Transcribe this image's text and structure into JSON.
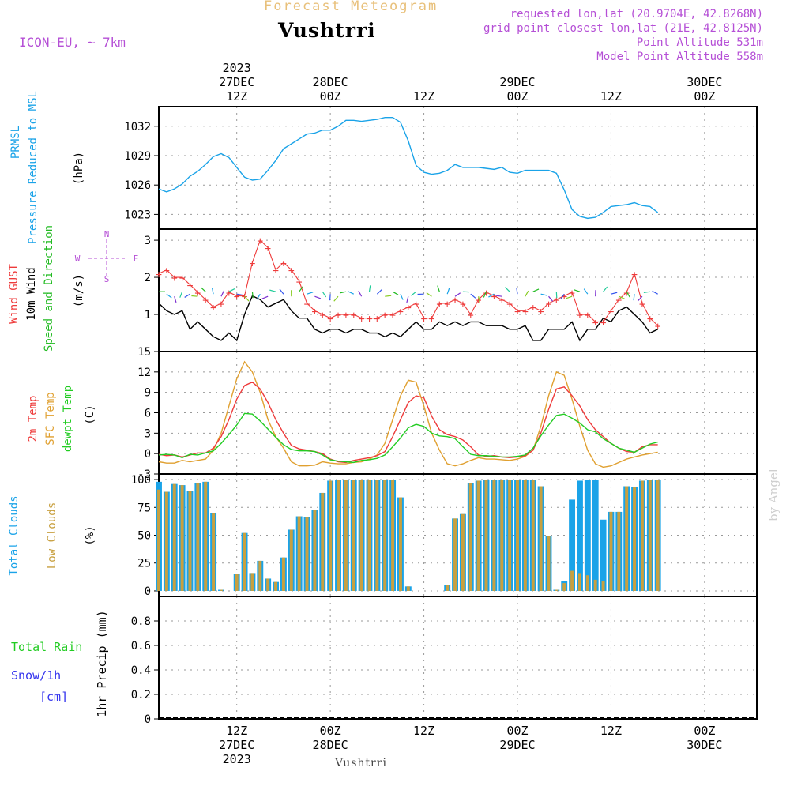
{
  "header": {
    "main_title": "Forecast Meteogram",
    "location": "Vushtrri",
    "model": "ICON-EU, ~ 7km",
    "requested": "requested lon,lat (20.9704E, 42.8268N)",
    "gridpoint": "grid point closest lon,lat (21E, 42.8125N)",
    "point_alt": "Point Altitude 531m",
    "model_alt": "Model Point Altitude 558m",
    "footer_location": "Vushtrri",
    "watermark": "by Angel"
  },
  "colors": {
    "pressure": "#1aa3e8",
    "gust": "#ee3b3b",
    "wind": "#000000",
    "wind_dir": "#22bb22",
    "temp2m": "#ee3b3b",
    "sfc_temp": "#e0a030",
    "dewpt": "#22cc22",
    "total_clouds": "#1aa3e8",
    "low_clouds": "#c8a040",
    "rain": "#22cc22",
    "snow": "#3333ee",
    "purple": "#b54fd6"
  },
  "chart_data": [
    {
      "type": "line",
      "panel": "pressure",
      "y_label_lines": [
        "PRMSL",
        "Pressure Reduced to MSL"
      ],
      "unit": "(hPa)",
      "ylim": [
        1021.5,
        1034
      ],
      "yticks": [
        1023,
        1026,
        1029,
        1032
      ],
      "x_hours": [
        0,
        1,
        2,
        3,
        4,
        5,
        6,
        7,
        8,
        9,
        10,
        11,
        12,
        13,
        14,
        15,
        16,
        17,
        18,
        19,
        20,
        21,
        22,
        23,
        24,
        25,
        26,
        27,
        28,
        29,
        30,
        31,
        32,
        33,
        34,
        35,
        36,
        37,
        38,
        39,
        40,
        41,
        42,
        43,
        44,
        45,
        46,
        47,
        48,
        49,
        50,
        51,
        52,
        53,
        54,
        55,
        56,
        57,
        58,
        59,
        60,
        61,
        62,
        63,
        64
      ],
      "series": [
        {
          "name": "PRMSL",
          "values": [
            1025.6,
            1025.3,
            1025.6,
            1026.1,
            1026.9,
            1027.4,
            1028.1,
            1028.9,
            1029.2,
            1028.8,
            1027.8,
            1026.8,
            1026.5,
            1026.6,
            1027.5,
            1028.5,
            1029.7,
            1030.2,
            1030.7,
            1031.2,
            1031.3,
            1031.6,
            1031.6,
            1032.0,
            1032.6,
            1032.6,
            1032.5,
            1032.6,
            1032.7,
            1032.9,
            1032.9,
            1032.4,
            1030.5,
            1028.0,
            1027.3,
            1027.1,
            1027.2,
            1027.5,
            1028.1,
            1027.8,
            1027.8,
            1027.8,
            1027.7,
            1027.6,
            1027.8,
            1027.3,
            1027.2,
            1027.5,
            1027.5,
            1027.5,
            1027.5,
            1027.2,
            1025.5,
            1023.5,
            1022.8,
            1022.6,
            1022.7,
            1023.2,
            1023.8,
            1023.9,
            1024.0,
            1024.2,
            1023.9,
            1023.8,
            1023.2
          ]
        }
      ]
    },
    {
      "type": "line",
      "panel": "wind",
      "y_label_lines": [
        "Wind GUST",
        "10m Wind",
        "Speed and Direction"
      ],
      "unit": "(m/s)",
      "ylim": [
        0,
        3.3
      ],
      "yticks": [
        1,
        2,
        3
      ],
      "compass": {
        "north": "N",
        "south": "S",
        "west": "W",
        "east": "E"
      },
      "x_hours": [
        0,
        1,
        2,
        3,
        4,
        5,
        6,
        7,
        8,
        9,
        10,
        11,
        12,
        13,
        14,
        15,
        16,
        17,
        18,
        19,
        20,
        21,
        22,
        23,
        24,
        25,
        26,
        27,
        28,
        29,
        30,
        31,
        32,
        33,
        34,
        35,
        36,
        37,
        38,
        39,
        40,
        41,
        42,
        43,
        44,
        45,
        46,
        47,
        48,
        49,
        50,
        51,
        52,
        53,
        54,
        55,
        56,
        57,
        58,
        59,
        60,
        61,
        62,
        63,
        64
      ],
      "series": [
        {
          "name": "Wind GUST",
          "values": [
            2.1,
            2.2,
            2.0,
            2.0,
            1.8,
            1.6,
            1.4,
            1.2,
            1.3,
            1.6,
            1.5,
            1.5,
            2.4,
            3.0,
            2.8,
            2.2,
            2.4,
            2.2,
            1.9,
            1.3,
            1.1,
            1.0,
            0.9,
            1.0,
            1.0,
            1.0,
            0.9,
            0.9,
            0.9,
            1.0,
            1.0,
            1.1,
            1.2,
            1.3,
            0.9,
            0.9,
            1.3,
            1.3,
            1.4,
            1.3,
            1.0,
            1.4,
            1.6,
            1.5,
            1.4,
            1.3,
            1.1,
            1.1,
            1.2,
            1.1,
            1.3,
            1.4,
            1.5,
            1.6,
            1.0,
            1.0,
            0.8,
            0.8,
            1.1,
            1.4,
            1.6,
            2.1,
            1.3,
            0.9,
            0.7
          ]
        },
        {
          "name": "10m Wind",
          "values": [
            1.3,
            1.1,
            1.0,
            1.1,
            0.6,
            0.8,
            0.6,
            0.4,
            0.3,
            0.5,
            0.3,
            1.0,
            1.5,
            1.4,
            1.2,
            1.3,
            1.4,
            1.1,
            0.9,
            0.9,
            0.6,
            0.5,
            0.6,
            0.6,
            0.5,
            0.6,
            0.6,
            0.5,
            0.5,
            0.4,
            0.5,
            0.4,
            0.6,
            0.8,
            0.6,
            0.6,
            0.8,
            0.7,
            0.8,
            0.7,
            0.8,
            0.8,
            0.7,
            0.7,
            0.7,
            0.6,
            0.6,
            0.7,
            0.3,
            0.3,
            0.6,
            0.6,
            0.6,
            0.8,
            0.3,
            0.6,
            0.6,
            0.9,
            0.8,
            1.1,
            1.2,
            1.0,
            0.8,
            0.5,
            0.6
          ]
        }
      ]
    },
    {
      "type": "line",
      "panel": "temperature",
      "y_label_lines": [
        "2m Temp",
        "SFC Temp",
        "dewpt Temp"
      ],
      "unit": "(C)",
      "ylim": [
        -3,
        15
      ],
      "yticks": [
        -3,
        0,
        3,
        6,
        9,
        12,
        15
      ],
      "x_hours": [
        0,
        1,
        2,
        3,
        4,
        5,
        6,
        7,
        8,
        9,
        10,
        11,
        12,
        13,
        14,
        15,
        16,
        17,
        18,
        19,
        20,
        21,
        22,
        23,
        24,
        25,
        26,
        27,
        28,
        29,
        30,
        31,
        32,
        33,
        34,
        35,
        36,
        37,
        38,
        39,
        40,
        41,
        42,
        43,
        44,
        45,
        46,
        47,
        48,
        49,
        50,
        51,
        52,
        53,
        54,
        55,
        56,
        57,
        58,
        59,
        60,
        61,
        62,
        63,
        64
      ],
      "series": [
        {
          "name": "2m Temp",
          "values": [
            -0.1,
            -0.3,
            -0.2,
            -0.5,
            -0.2,
            0.1,
            0.1,
            0.8,
            2.5,
            5.0,
            8.0,
            10.0,
            10.5,
            9.5,
            7.5,
            5.0,
            3.0,
            1.2,
            0.7,
            0.5,
            0.3,
            0.0,
            -0.8,
            -1.2,
            -1.3,
            -1.0,
            -0.8,
            -0.6,
            -0.3,
            0.3,
            2.5,
            5.0,
            7.5,
            8.5,
            8.2,
            5.5,
            3.5,
            2.8,
            2.5,
            2.0,
            1.0,
            -0.2,
            -0.4,
            -0.3,
            -0.5,
            -0.6,
            -0.5,
            -0.3,
            0.5,
            3.0,
            6.5,
            9.5,
            9.8,
            8.5,
            7.0,
            5.0,
            3.5,
            2.5,
            1.5,
            0.8,
            0.3,
            0.2,
            1.0,
            1.3,
            1.3
          ]
        },
        {
          "name": "SFC Temp",
          "values": [
            -1.2,
            -1.4,
            -1.4,
            -1.0,
            -1.2,
            -1.0,
            -0.8,
            0.5,
            3.0,
            7.0,
            11.0,
            13.5,
            12.0,
            9.0,
            5.0,
            2.5,
            0.8,
            -1.2,
            -1.8,
            -1.8,
            -1.7,
            -1.2,
            -1.4,
            -1.5,
            -1.5,
            -1.3,
            -1.2,
            -0.8,
            -0.2,
            1.5,
            5.0,
            8.5,
            10.8,
            10.5,
            7.0,
            3.0,
            0.5,
            -1.5,
            -1.8,
            -1.5,
            -1.0,
            -0.6,
            -0.8,
            -0.8,
            -0.9,
            -1.0,
            -0.8,
            -0.4,
            0.5,
            4.0,
            8.5,
            12.0,
            11.5,
            8.0,
            4.0,
            0.5,
            -1.5,
            -2.0,
            -1.8,
            -1.3,
            -0.8,
            -0.5,
            -0.2,
            0.0,
            0.2
          ]
        },
        {
          "name": "dewpt Temp",
          "values": [
            -0.2,
            -0.1,
            -0.2,
            -0.6,
            -0.1,
            -0.2,
            0.1,
            0.4,
            1.5,
            2.8,
            4.2,
            5.9,
            5.8,
            4.8,
            3.6,
            2.4,
            1.3,
            0.6,
            0.4,
            0.4,
            0.3,
            -0.2,
            -0.9,
            -1.1,
            -1.2,
            -1.3,
            -1.0,
            -0.9,
            -0.7,
            -0.2,
            1.0,
            2.3,
            3.8,
            4.3,
            4.0,
            3.0,
            2.6,
            2.5,
            2.2,
            1.0,
            -0.1,
            -0.3,
            -0.3,
            -0.4,
            -0.5,
            -0.5,
            -0.4,
            -0.2,
            0.8,
            2.6,
            4.2,
            5.6,
            5.8,
            5.2,
            4.5,
            3.5,
            3.2,
            2.2,
            1.5,
            0.8,
            0.5,
            0.2,
            0.8,
            1.4,
            1.7
          ]
        }
      ]
    },
    {
      "type": "bar",
      "panel": "clouds",
      "y_label_lines": [
        "Total Clouds",
        "Low Clouds"
      ],
      "unit": "(%)",
      "ylim": [
        -5,
        105
      ],
      "yticks": [
        0,
        25,
        50,
        75,
        100
      ],
      "x_hours": [
        0,
        1,
        2,
        3,
        4,
        5,
        6,
        7,
        8,
        9,
        10,
        11,
        12,
        13,
        14,
        15,
        16,
        17,
        18,
        19,
        20,
        21,
        22,
        23,
        24,
        25,
        26,
        27,
        28,
        29,
        30,
        31,
        32,
        33,
        34,
        35,
        36,
        37,
        38,
        39,
        40,
        41,
        42,
        43,
        44,
        45,
        46,
        47,
        48,
        49,
        50,
        51,
        52,
        53,
        54,
        55,
        56,
        57,
        58,
        59,
        60,
        61,
        62,
        63,
        64
      ],
      "series": [
        {
          "name": "Total Clouds",
          "values": [
            98,
            89,
            96,
            95,
            90,
            97,
            98,
            70,
            1,
            0,
            15,
            52,
            16,
            27,
            11,
            8,
            30,
            55,
            67,
            66,
            73,
            88,
            99,
            100,
            100,
            100,
            100,
            100,
            100,
            100,
            100,
            84,
            4,
            0,
            0,
            0,
            0,
            5,
            65,
            69,
            97,
            99,
            100,
            100,
            100,
            100,
            100,
            100,
            100,
            94,
            49,
            1,
            9,
            82,
            99,
            100,
            100,
            64,
            71,
            71,
            94,
            93,
            99,
            100,
            100
          ]
        },
        {
          "name": "Low Clouds",
          "values": [
            91,
            89,
            96,
            95,
            90,
            97,
            98,
            70,
            1,
            0,
            15,
            52,
            16,
            27,
            11,
            8,
            30,
            55,
            67,
            66,
            73,
            88,
            99,
            100,
            100,
            100,
            100,
            100,
            100,
            100,
            100,
            84,
            4,
            0,
            0,
            0,
            0,
            5,
            65,
            69,
            97,
            99,
            100,
            100,
            100,
            100,
            100,
            100,
            100,
            94,
            49,
            1,
            7,
            18,
            16,
            14,
            10,
            9,
            71,
            71,
            94,
            93,
            99,
            100,
            100
          ]
        }
      ]
    },
    {
      "type": "bar",
      "panel": "precipitation",
      "y_label_lines": [
        "Total  Rain",
        "Snow/1h",
        "[cm]"
      ],
      "unit": "1hr Precip (mm)",
      "ylim": [
        0,
        1.0
      ],
      "yticks": [
        0,
        0.2,
        0.4,
        0.6,
        0.8
      ],
      "ytick_labels": [
        "0",
        "0.2",
        "0.4",
        "0.6",
        "0.8"
      ],
      "series": [
        {
          "name": "Total Rain",
          "values": []
        },
        {
          "name": "Snow/1h",
          "values": []
        }
      ]
    }
  ],
  "time_axis": {
    "labels": [
      {
        "hour": 10,
        "lines": [
          "12Z",
          "27DEC",
          "2023"
        ]
      },
      {
        "hour": 22,
        "lines": [
          "00Z",
          "28DEC"
        ]
      },
      {
        "hour": 34,
        "lines": [
          "12Z"
        ]
      },
      {
        "hour": 46,
        "lines": [
          "00Z",
          "29DEC"
        ]
      },
      {
        "hour": 58,
        "lines": [
          "12Z"
        ]
      },
      {
        "hour": 70,
        "lines": [
          "00Z",
          "30DEC"
        ]
      }
    ],
    "top_labels": [
      {
        "hour": 10,
        "lines": [
          "2023",
          "27DEC",
          "12Z"
        ]
      },
      {
        "hour": 22,
        "lines": [
          "28DEC",
          "00Z"
        ]
      },
      {
        "hour": 34,
        "lines": [
          "12Z"
        ]
      },
      {
        "hour": 46,
        "lines": [
          "29DEC",
          "00Z"
        ]
      },
      {
        "hour": 58,
        "lines": [
          "12Z"
        ]
      },
      {
        "hour": 70,
        "lines": [
          "30DEC",
          "00Z"
        ]
      }
    ]
  }
}
